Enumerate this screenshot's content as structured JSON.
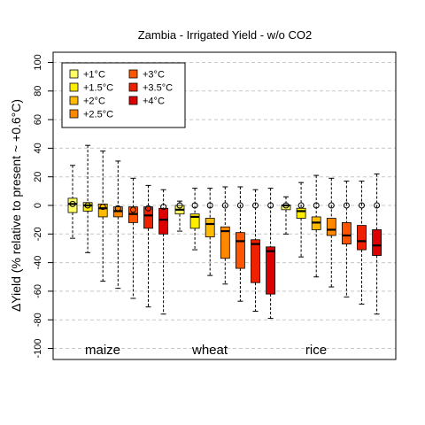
{
  "chart_data": {
    "type": "box",
    "title": "Zambia - Irrigated Yield - w/o CO2",
    "ylabel": "ΔYield (% relative to present ~ +0.6°C)",
    "xlabel": "",
    "ylim": [
      -107,
      107
    ],
    "yticks": [
      -100,
      -80,
      -60,
      -40,
      -20,
      0,
      20,
      40,
      60,
      80,
      100
    ],
    "grid": "horizontal dashed",
    "legend_position": "top-left",
    "groups": [
      "maize",
      "wheat",
      "rice"
    ],
    "series": [
      {
        "name": "+1°C",
        "color": "#FFFF66"
      },
      {
        "name": "+1.5°C",
        "color": "#FFEE00"
      },
      {
        "name": "+2°C",
        "color": "#FFBB00"
      },
      {
        "name": "+2.5°C",
        "color": "#FF8800"
      },
      {
        "name": "+3°C",
        "color": "#FF5500"
      },
      {
        "name": "+3.5°C",
        "color": "#EE2200"
      },
      {
        "name": "+4°C",
        "color": "#DD0000"
      }
    ],
    "boxes": [
      {
        "group": "maize",
        "series": 0,
        "whisker_low": -23,
        "q1": -5,
        "median": 1,
        "q3": 5,
        "whisker_high": 28,
        "mean": 1
      },
      {
        "group": "maize",
        "series": 1,
        "whisker_low": -33,
        "q1": -4,
        "median": 0,
        "q3": 2,
        "whisker_high": 42,
        "mean": 0
      },
      {
        "group": "maize",
        "series": 2,
        "whisker_low": -53,
        "q1": -8,
        "median": -2,
        "q3": 1,
        "whisker_high": 38,
        "mean": -1
      },
      {
        "group": "maize",
        "series": 3,
        "whisker_low": -58,
        "q1": -8,
        "median": -4,
        "q3": -1,
        "whisker_high": 31,
        "mean": -2
      },
      {
        "group": "maize",
        "series": 4,
        "whisker_low": -65,
        "q1": -12,
        "median": -6,
        "q3": -1,
        "whisker_high": 19,
        "mean": -3
      },
      {
        "group": "maize",
        "series": 5,
        "whisker_low": -71,
        "q1": -16,
        "median": -7,
        "q3": -1,
        "whisker_high": 14,
        "mean": -2
      },
      {
        "group": "maize",
        "series": 6,
        "whisker_low": -76,
        "q1": -20,
        "median": -10,
        "q3": -2,
        "whisker_high": 11,
        "mean": -1
      },
      {
        "group": "wheat",
        "series": 0,
        "whisker_low": -18,
        "q1": -6,
        "median": -3,
        "q3": 0,
        "whisker_high": 3,
        "mean": 0
      },
      {
        "group": "wheat",
        "series": 1,
        "whisker_low": -31,
        "q1": -16,
        "median": -8,
        "q3": -6,
        "whisker_high": 12,
        "mean": 0
      },
      {
        "group": "wheat",
        "series": 2,
        "whisker_low": -49,
        "q1": -22,
        "median": -13,
        "q3": -9,
        "whisker_high": 12,
        "mean": 0
      },
      {
        "group": "wheat",
        "series": 3,
        "whisker_low": -55,
        "q1": -37,
        "median": -18,
        "q3": -15,
        "whisker_high": 13,
        "mean": 0
      },
      {
        "group": "wheat",
        "series": 4,
        "whisker_low": -67,
        "q1": -44,
        "median": -25,
        "q3": -19,
        "whisker_high": 13,
        "mean": 0
      },
      {
        "group": "wheat",
        "series": 5,
        "whisker_low": -74,
        "q1": -54,
        "median": -27,
        "q3": -24,
        "whisker_high": 11,
        "mean": 0
      },
      {
        "group": "wheat",
        "series": 6,
        "whisker_low": -79,
        "q1": -62,
        "median": -32,
        "q3": -29,
        "whisker_high": 12,
        "mean": 0
      },
      {
        "group": "rice",
        "series": 0,
        "whisker_low": -20,
        "q1": -3,
        "median": 0,
        "q3": 0,
        "whisker_high": 6,
        "mean": 0
      },
      {
        "group": "rice",
        "series": 1,
        "whisker_low": -36,
        "q1": -9,
        "median": -4,
        "q3": -2,
        "whisker_high": 16,
        "mean": 0
      },
      {
        "group": "rice",
        "series": 2,
        "whisker_low": -50,
        "q1": -17,
        "median": -12,
        "q3": -8,
        "whisker_high": 21,
        "mean": 0
      },
      {
        "group": "rice",
        "series": 3,
        "whisker_low": -57,
        "q1": -21,
        "median": -17,
        "q3": -9,
        "whisker_high": 19,
        "mean": 0
      },
      {
        "group": "rice",
        "series": 4,
        "whisker_low": -64,
        "q1": -27,
        "median": -21,
        "q3": -12,
        "whisker_high": 17,
        "mean": 0
      },
      {
        "group": "rice",
        "series": 5,
        "whisker_low": -69,
        "q1": -31,
        "median": -25,
        "q3": -14,
        "whisker_high": 17,
        "mean": 0
      },
      {
        "group": "rice",
        "series": 6,
        "whisker_low": -76,
        "q1": -35,
        "median": -28,
        "q3": -17,
        "whisker_high": 22,
        "mean": 0
      }
    ]
  }
}
